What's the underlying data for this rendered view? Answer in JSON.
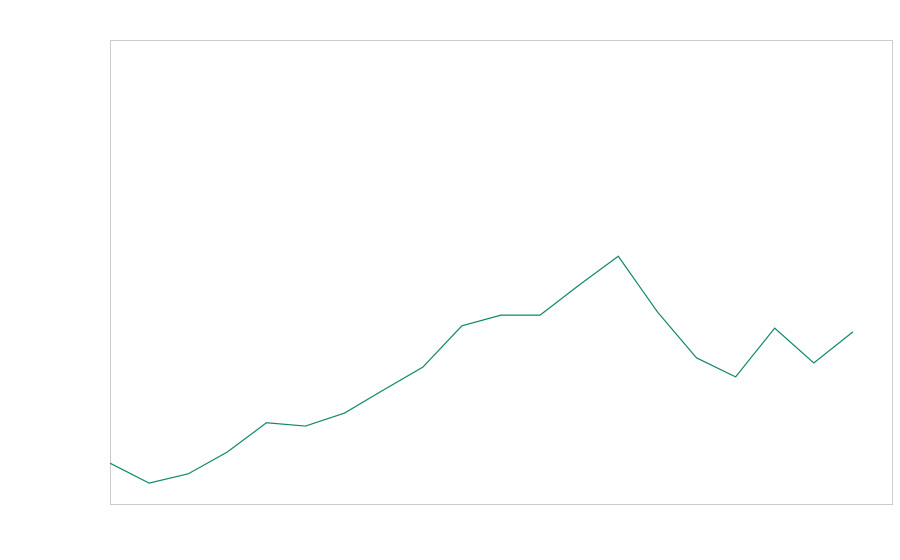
{
  "chart_data": {
    "type": "line",
    "x": [
      0,
      1,
      2,
      3,
      4,
      5,
      6,
      7,
      8,
      9,
      10,
      11,
      12,
      13,
      14,
      15,
      16,
      17,
      18,
      19
    ],
    "series": [
      {
        "color": "#11876a",
        "values": [
          8.8,
          4.5,
          6.5,
          11.2,
          17.5,
          16.8,
          19.6,
          24.6,
          29.5,
          38.4,
          40.7,
          40.7,
          47.2,
          53.4,
          41.4,
          31.5,
          27.4,
          37.9,
          30.4,
          37.1
        ]
      }
    ],
    "xlim": [
      0,
      20
    ],
    "ylim": [
      0,
      100
    ]
  }
}
